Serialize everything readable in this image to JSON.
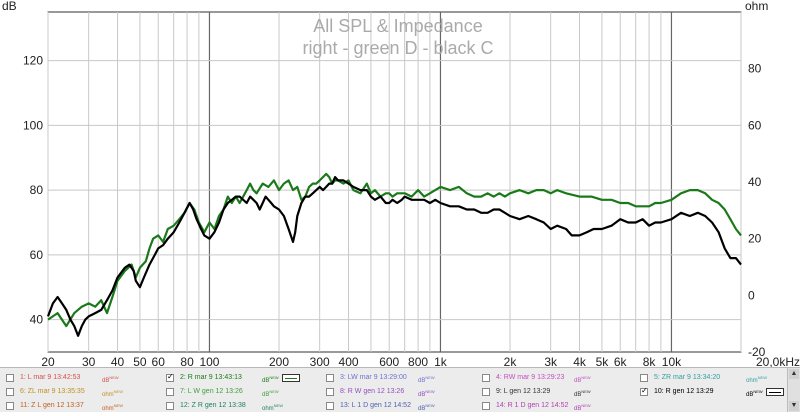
{
  "chart_data": {
    "type": "line",
    "title": "All SPL & Impedance",
    "subtitle": "right - green D - black C",
    "left_axis_unit": "dB",
    "right_axis_unit": "ohm",
    "x_scale": "log",
    "xlim": [
      20,
      20000
    ],
    "ylim_left": [
      30,
      135
    ],
    "ylim_right": [
      -20,
      100
    ],
    "x_ticks": [
      {
        "value": 20,
        "label": "20"
      },
      {
        "value": 30,
        "label": "30"
      },
      {
        "value": 40,
        "label": "40"
      },
      {
        "value": 50,
        "label": "50"
      },
      {
        "value": 60,
        "label": "60"
      },
      {
        "value": 80,
        "label": "80"
      },
      {
        "value": 100,
        "label": "100"
      },
      {
        "value": 200,
        "label": "200"
      },
      {
        "value": 300,
        "label": "300"
      },
      {
        "value": 400,
        "label": "400"
      },
      {
        "value": 600,
        "label": "600"
      },
      {
        "value": 800,
        "label": "800"
      },
      {
        "value": 1000,
        "label": "1k"
      },
      {
        "value": 2000,
        "label": "2k"
      },
      {
        "value": 3000,
        "label": "3k"
      },
      {
        "value": 4000,
        "label": "4k"
      },
      {
        "value": 5000,
        "label": "5k"
      },
      {
        "value": 6000,
        "label": "6k"
      },
      {
        "value": 8000,
        "label": "8k"
      },
      {
        "value": 10000,
        "label": "10k"
      },
      {
        "value": 20000,
        "label": "20,0kHz"
      }
    ],
    "y_ticks_left": [
      {
        "value": 40,
        "label": "40"
      },
      {
        "value": 60,
        "label": "60"
      },
      {
        "value": 80,
        "label": "80"
      },
      {
        "value": 100,
        "label": "100"
      },
      {
        "value": 120,
        "label": "120"
      }
    ],
    "y_ticks_right": [
      {
        "value": -20,
        "label": "-20"
      },
      {
        "value": 0,
        "label": "0"
      },
      {
        "value": 20,
        "label": "20"
      },
      {
        "value": 40,
        "label": "40"
      },
      {
        "value": 60,
        "label": "60"
      },
      {
        "value": 80,
        "label": "80"
      }
    ],
    "grid": true,
    "series": [
      {
        "color": "#1a7a1a",
        "axis": "left",
        "points": [
          [
            20,
            40
          ],
          [
            22,
            42
          ],
          [
            24,
            38
          ],
          [
            26,
            42
          ],
          [
            28,
            44
          ],
          [
            30,
            45
          ],
          [
            32,
            44
          ],
          [
            34,
            46
          ],
          [
            36,
            42
          ],
          [
            38,
            47
          ],
          [
            40,
            52
          ],
          [
            43,
            55
          ],
          [
            46,
            57
          ],
          [
            48,
            53
          ],
          [
            50,
            56
          ],
          [
            53,
            58
          ],
          [
            55,
            62
          ],
          [
            57,
            65
          ],
          [
            60,
            66
          ],
          [
            63,
            64
          ],
          [
            66,
            68
          ],
          [
            70,
            69
          ],
          [
            74,
            71
          ],
          [
            78,
            73
          ],
          [
            82,
            76
          ],
          [
            86,
            74
          ],
          [
            90,
            70
          ],
          [
            95,
            67
          ],
          [
            100,
            70
          ],
          [
            105,
            68
          ],
          [
            110,
            72
          ],
          [
            115,
            74
          ],
          [
            120,
            78
          ],
          [
            125,
            76
          ],
          [
            130,
            78
          ],
          [
            135,
            76
          ],
          [
            140,
            78
          ],
          [
            145,
            80
          ],
          [
            150,
            82
          ],
          [
            155,
            80
          ],
          [
            160,
            79
          ],
          [
            170,
            82
          ],
          [
            180,
            81
          ],
          [
            190,
            83
          ],
          [
            200,
            80
          ],
          [
            210,
            82
          ],
          [
            220,
            83
          ],
          [
            230,
            80
          ],
          [
            240,
            81
          ],
          [
            250,
            77
          ],
          [
            260,
            78
          ],
          [
            270,
            81
          ],
          [
            280,
            82
          ],
          [
            290,
            82
          ],
          [
            300,
            83
          ],
          [
            310,
            84
          ],
          [
            320,
            85
          ],
          [
            330,
            84
          ],
          [
            340,
            82
          ],
          [
            350,
            83
          ],
          [
            360,
            83
          ],
          [
            380,
            82
          ],
          [
            400,
            83
          ],
          [
            420,
            80
          ],
          [
            450,
            79
          ],
          [
            480,
            82
          ],
          [
            500,
            79
          ],
          [
            520,
            80
          ],
          [
            550,
            78
          ],
          [
            580,
            79
          ],
          [
            600,
            79
          ],
          [
            620,
            78
          ],
          [
            650,
            79
          ],
          [
            680,
            79
          ],
          [
            700,
            79
          ],
          [
            750,
            78
          ],
          [
            800,
            80
          ],
          [
            850,
            78
          ],
          [
            900,
            79
          ],
          [
            950,
            80
          ],
          [
            1000,
            81
          ],
          [
            1100,
            80
          ],
          [
            1200,
            81
          ],
          [
            1300,
            79
          ],
          [
            1400,
            78
          ],
          [
            1500,
            78
          ],
          [
            1600,
            79
          ],
          [
            1700,
            78
          ],
          [
            1800,
            79
          ],
          [
            1900,
            78
          ],
          [
            2000,
            79
          ],
          [
            2200,
            80
          ],
          [
            2400,
            79
          ],
          [
            2600,
            80
          ],
          [
            2800,
            80
          ],
          [
            3000,
            79
          ],
          [
            3200,
            80
          ],
          [
            3500,
            79
          ],
          [
            4000,
            78
          ],
          [
            4500,
            78
          ],
          [
            5000,
            77
          ],
          [
            5500,
            77
          ],
          [
            6000,
            76
          ],
          [
            6500,
            76
          ],
          [
            7000,
            75
          ],
          [
            7500,
            75
          ],
          [
            8000,
            75
          ],
          [
            8500,
            76
          ],
          [
            9000,
            76
          ],
          [
            10000,
            77
          ],
          [
            11000,
            79
          ],
          [
            12000,
            80
          ],
          [
            13000,
            80
          ],
          [
            14000,
            79
          ],
          [
            15000,
            77
          ],
          [
            16000,
            76
          ],
          [
            17000,
            74
          ],
          [
            18000,
            71
          ],
          [
            19000,
            68
          ],
          [
            20000,
            66
          ]
        ]
      },
      {
        "color": "#000000",
        "axis": "left",
        "points": [
          [
            20,
            41
          ],
          [
            21,
            45
          ],
          [
            22,
            47
          ],
          [
            23,
            45
          ],
          [
            24,
            43
          ],
          [
            25,
            40
          ],
          [
            26,
            38
          ],
          [
            27,
            35
          ],
          [
            28,
            38
          ],
          [
            29,
            40
          ],
          [
            30,
            41
          ],
          [
            32,
            42
          ],
          [
            34,
            43
          ],
          [
            36,
            46
          ],
          [
            38,
            49
          ],
          [
            40,
            53
          ],
          [
            43,
            56
          ],
          [
            45,
            57
          ],
          [
            47,
            55
          ],
          [
            48,
            52
          ],
          [
            50,
            50
          ],
          [
            52,
            53
          ],
          [
            55,
            57
          ],
          [
            58,
            60
          ],
          [
            60,
            62
          ],
          [
            63,
            63
          ],
          [
            66,
            65
          ],
          [
            70,
            67
          ],
          [
            74,
            70
          ],
          [
            78,
            73
          ],
          [
            82,
            76
          ],
          [
            85,
            74
          ],
          [
            88,
            71
          ],
          [
            92,
            68
          ],
          [
            95,
            66
          ],
          [
            100,
            65
          ],
          [
            105,
            67
          ],
          [
            110,
            70
          ],
          [
            115,
            74
          ],
          [
            120,
            76
          ],
          [
            125,
            77
          ],
          [
            130,
            78
          ],
          [
            135,
            78
          ],
          [
            140,
            77
          ],
          [
            145,
            76
          ],
          [
            150,
            78
          ],
          [
            155,
            77
          ],
          [
            160,
            76
          ],
          [
            165,
            74
          ],
          [
            170,
            76
          ],
          [
            175,
            78
          ],
          [
            180,
            77
          ],
          [
            185,
            76
          ],
          [
            190,
            75
          ],
          [
            200,
            74
          ],
          [
            210,
            72
          ],
          [
            220,
            68
          ],
          [
            230,
            64
          ],
          [
            235,
            67
          ],
          [
            240,
            72
          ],
          [
            250,
            76
          ],
          [
            260,
            78
          ],
          [
            270,
            78
          ],
          [
            280,
            79
          ],
          [
            290,
            80
          ],
          [
            300,
            81
          ],
          [
            310,
            80
          ],
          [
            320,
            81
          ],
          [
            330,
            82
          ],
          [
            340,
            82
          ],
          [
            350,
            84
          ],
          [
            360,
            83
          ],
          [
            380,
            83
          ],
          [
            400,
            82
          ],
          [
            420,
            81
          ],
          [
            450,
            80
          ],
          [
            480,
            80
          ],
          [
            500,
            78
          ],
          [
            520,
            77
          ],
          [
            550,
            78
          ],
          [
            580,
            76
          ],
          [
            600,
            76
          ],
          [
            620,
            77
          ],
          [
            650,
            76
          ],
          [
            680,
            77
          ],
          [
            700,
            78
          ],
          [
            750,
            77
          ],
          [
            800,
            77
          ],
          [
            850,
            77
          ],
          [
            900,
            76
          ],
          [
            950,
            77
          ],
          [
            1000,
            76
          ],
          [
            1100,
            75
          ],
          [
            1200,
            75
          ],
          [
            1300,
            74
          ],
          [
            1400,
            74
          ],
          [
            1500,
            73
          ],
          [
            1600,
            73
          ],
          [
            1700,
            74
          ],
          [
            1800,
            74
          ],
          [
            1900,
            73
          ],
          [
            2000,
            72
          ],
          [
            2200,
            71
          ],
          [
            2400,
            72
          ],
          [
            2600,
            71
          ],
          [
            2800,
            70
          ],
          [
            3000,
            68
          ],
          [
            3200,
            69
          ],
          [
            3500,
            68
          ],
          [
            3700,
            66
          ],
          [
            4000,
            66
          ],
          [
            4300,
            67
          ],
          [
            4600,
            68
          ],
          [
            5000,
            68
          ],
          [
            5500,
            69
          ],
          [
            6000,
            71
          ],
          [
            6500,
            70
          ],
          [
            7000,
            70
          ],
          [
            7500,
            71
          ],
          [
            8000,
            69
          ],
          [
            8500,
            70
          ],
          [
            9000,
            70
          ],
          [
            10000,
            71
          ],
          [
            11000,
            73
          ],
          [
            12000,
            72
          ],
          [
            13000,
            73
          ],
          [
            14000,
            72
          ],
          [
            15000,
            70
          ],
          [
            16000,
            67
          ],
          [
            17000,
            62
          ],
          [
            18000,
            59
          ],
          [
            19000,
            59
          ],
          [
            20000,
            57
          ]
        ]
      }
    ],
    "legend_entries": [
      {
        "checked": false,
        "label": "1: L mar 9 13:42:53",
        "unit": "dB",
        "unit_sup": "NEW",
        "color": "#d45050",
        "swatch": false
      },
      {
        "checked": true,
        "label": "2: R mar 9 13:43:13",
        "unit": "dB",
        "unit_sup": "NEW",
        "color": "#1a7a1a",
        "swatch": true
      },
      {
        "checked": false,
        "label": "3: LW mar 9 13:29:00",
        "unit": "dB",
        "unit_sup": "NEW",
        "color": "#7070d0",
        "swatch": false
      },
      {
        "checked": false,
        "label": "4: RW mar 9 13:29:23",
        "unit": "dB",
        "unit_sup": "NEW",
        "color": "#c050c0",
        "swatch": false
      },
      {
        "checked": false,
        "label": "5: ZR mar 9 13:34:20",
        "unit": "ohm",
        "unit_sup": "NEW",
        "color": "#30a0a0",
        "swatch": false
      },
      {
        "checked": false,
        "label": "6: ZL mar 9 13:35:35",
        "unit": "ohm",
        "unit_sup": "NEW",
        "color": "#c09020",
        "swatch": false
      },
      {
        "checked": false,
        "label": "7: L W gen 12 13:26",
        "unit": "dB",
        "unit_sup": "NEW",
        "color": "#40a040",
        "swatch": false
      },
      {
        "checked": false,
        "label": "8: R W gen 12 13:26",
        "unit": "dB",
        "unit_sup": "NEW",
        "color": "#9050c0",
        "swatch": false
      },
      {
        "checked": false,
        "label": "9: L gen 12 13:29",
        "unit": "dB",
        "unit_sup": "NEW",
        "color": "#333333",
        "swatch": false
      },
      {
        "checked": true,
        "label": "10: R gen 12 13:29",
        "unit": "dB",
        "unit_sup": "NEW",
        "color": "#000000",
        "swatch": true
      },
      {
        "checked": false,
        "label": "11: Z L gen 12 13:37",
        "unit": "ohm",
        "unit_sup": "NEW",
        "color": "#c06020",
        "swatch": false
      },
      {
        "checked": false,
        "label": "12: Z R gen 12 13:38",
        "unit": "ohm",
        "unit_sup": "NEW",
        "color": "#208060",
        "swatch": false
      },
      {
        "checked": false,
        "label": "13: L 1 D gen 12 14:52",
        "unit": "dB",
        "unit_sup": "NEW",
        "color": "#5060b0",
        "swatch": false
      },
      {
        "checked": false,
        "label": "14: R 1 D gen 12 14:52",
        "unit": "dB",
        "unit_sup": "NEW",
        "color": "#b040b0",
        "swatch": false
      }
    ]
  },
  "scrollbar": {
    "up": "▲",
    "down": "▼"
  }
}
